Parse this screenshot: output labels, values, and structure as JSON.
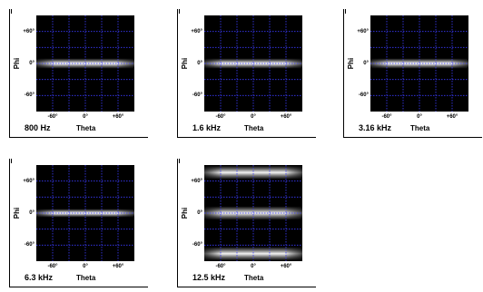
{
  "chart_data": [
    {
      "type": "heatmap",
      "title": "800 Hz",
      "xlabel": "Theta",
      "ylabel": "Phi",
      "xticks": [
        "-60°",
        "0°",
        "+60°"
      ],
      "yticks": [
        "+60°",
        "0°",
        "-60°"
      ],
      "xlim": [
        -90,
        90
      ],
      "ylim": [
        -90,
        90
      ],
      "grid": true,
      "bands": [
        {
          "phi": 0,
          "half_width": 6,
          "intensity": 1.0
        }
      ]
    },
    {
      "type": "heatmap",
      "title": "1.6 kHz",
      "xlabel": "Theta",
      "ylabel": "Phi",
      "xticks": [
        "-60°",
        "0°",
        "+60°"
      ],
      "yticks": [
        "+60°",
        "0°",
        "-60°"
      ],
      "xlim": [
        -90,
        90
      ],
      "ylim": [
        -90,
        90
      ],
      "grid": true,
      "bands": [
        {
          "phi": 0,
          "half_width": 6,
          "intensity": 1.0
        }
      ]
    },
    {
      "type": "heatmap",
      "title": "3.16 kHz",
      "xlabel": "Theta",
      "ylabel": "Phi",
      "xticks": [
        "-60°",
        "0°",
        "+60°"
      ],
      "yticks": [
        "+60°",
        "0°",
        "-60°"
      ],
      "xlim": [
        -90,
        90
      ],
      "ylim": [
        -90,
        90
      ],
      "grid": true,
      "bands": [
        {
          "phi": 0,
          "half_width": 6,
          "intensity": 1.0
        }
      ]
    },
    {
      "type": "heatmap",
      "title": "6.3 kHz",
      "xlabel": "Theta",
      "ylabel": "Phi",
      "xticks": [
        "-60°",
        "0°",
        "+60°"
      ],
      "yticks": [
        "+60°",
        "0°",
        "-60°"
      ],
      "xlim": [
        -90,
        90
      ],
      "ylim": [
        -90,
        90
      ],
      "grid": true,
      "bands": [
        {
          "phi": 0,
          "half_width": 5,
          "intensity": 1.0
        }
      ]
    },
    {
      "type": "heatmap",
      "title": "12.5 kHz",
      "xlabel": "Theta",
      "ylabel": "Phi",
      "xticks": [
        "-60°",
        "0°",
        "+60°"
      ],
      "yticks": [
        "+60°",
        "0°",
        "-60°"
      ],
      "xlim": [
        -90,
        90
      ],
      "ylim": [
        -90,
        90
      ],
      "grid": true,
      "bands": [
        {
          "phi": 76,
          "half_width": 8,
          "intensity": 0.95
        },
        {
          "phi": 0,
          "half_width": 8,
          "intensity": 0.95
        },
        {
          "phi": -76,
          "half_width": 8,
          "intensity": 0.95
        }
      ]
    }
  ],
  "colors": {
    "background": "#000000",
    "band": "#ffffff",
    "grid": "#3b3bff"
  }
}
